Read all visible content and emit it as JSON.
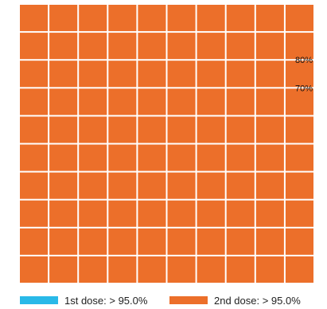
{
  "chart_data": {
    "type": "waffle",
    "grid": {
      "rows": 10,
      "columns": 10
    },
    "cells_filled": {
      "first_dose": 0,
      "second_dose": 100
    },
    "annotations": [
      {
        "text": "80%",
        "value": 80
      },
      {
        "text": "70%",
        "value": 70
      }
    ],
    "series": [
      {
        "name": "1st dose: > 95.0%",
        "color": "#29b9e8"
      },
      {
        "name": "2nd dose: > 95.0%",
        "color": "#ec6f2a"
      }
    ],
    "grid_line_color": "#ffffff",
    "legend_position": "bottom"
  }
}
